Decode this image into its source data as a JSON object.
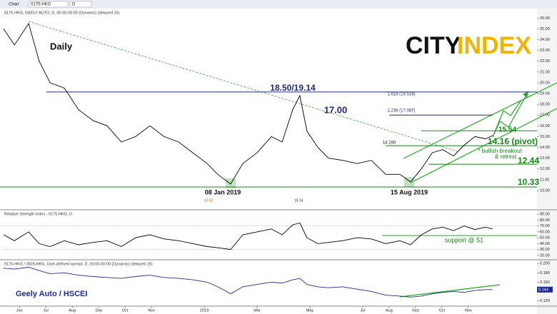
{
  "toolbar": {
    "tab": "Chart",
    "symbol": "0175-HKG",
    "interval": "D"
  },
  "logo": {
    "city": "CITY",
    "index": "INDEX"
  },
  "chart_data": [
    {
      "type": "line",
      "title": "0175-HKG, GEELY AUTO, D, 00:00-00:00 (Dynamic) (delayed 15)",
      "label": "Daily",
      "x": [
        -0.6,
        -0.19,
        0.35,
        0.75,
        1.16,
        1.7,
        2.24,
        2.78,
        3.32,
        3.86,
        4.4,
        4.94,
        5.48,
        6.03,
        6.57,
        7.11,
        7.51,
        8.0,
        8.46,
        9.0,
        9.54,
        9.95,
        10.35,
        10.62,
        10.89,
        11.3,
        11.7,
        12.24,
        12.79,
        13.33,
        13.87,
        14.41,
        14.81,
        15.22,
        15.63,
        16.03,
        16.44,
        16.84,
        17.25,
        17.65,
        17.92
      ],
      "series": [
        {
          "name": "GEELY AUTO",
          "color": "#000000",
          "values": [
            25.0,
            23.5,
            25.5,
            22.0,
            20.0,
            19.5,
            17.5,
            16.5,
            16.0,
            14.5,
            15.0,
            16.0,
            15.0,
            14.5,
            13.5,
            12.5,
            11.5,
            10.6,
            12.5,
            13.5,
            15.0,
            14.5,
            17.5,
            18.8,
            15.5,
            14.0,
            13.0,
            12.8,
            12.5,
            12.8,
            11.5,
            11.5,
            10.8,
            12.0,
            13.5,
            13.8,
            13.2,
            14.2,
            15.0,
            14.8,
            15.1
          ]
        }
      ],
      "xlim": [
        -0.6,
        19.6
      ],
      "ylim": [
        8.34,
        26.75
      ],
      "yticks": [
        {
          "value": 10,
          "label": "10.00"
        },
        {
          "value": 11,
          "label": "11.00"
        },
        {
          "value": 12,
          "label": "12.00"
        },
        {
          "value": 13,
          "label": "13.00"
        },
        {
          "value": 14,
          "label": "14.00"
        },
        {
          "value": 15,
          "label": "15.00"
        },
        {
          "value": 16,
          "label": "16.00"
        },
        {
          "value": 17,
          "label": "17.00"
        },
        {
          "value": 18,
          "label": "18.00"
        },
        {
          "value": 19,
          "label": "19.00"
        },
        {
          "value": 20,
          "label": "20.00"
        },
        {
          "value": 21,
          "label": "21.00"
        },
        {
          "value": 22,
          "label": "22.00"
        },
        {
          "value": 23,
          "label": "23.00"
        },
        {
          "value": 24,
          "label": "24.00"
        },
        {
          "value": 25,
          "label": "25.00"
        },
        {
          "value": 26,
          "label": "26.00"
        }
      ],
      "levels": [
        {
          "value": 19.14,
          "label": "18.50/19.14",
          "color": "#1f2a7a"
        },
        {
          "value": 17.0,
          "label": "17.00",
          "color": "#1f2a7a"
        },
        {
          "value": 15.54,
          "label": "15.54",
          "color": "#138a13"
        },
        {
          "value": 14.16,
          "label": "14.16 (pivot)",
          "color": "#138a13"
        },
        {
          "value": 12.44,
          "label": "12.44",
          "color": "#138a13"
        },
        {
          "value": 10.33,
          "label": "10.33",
          "color": "#138a13"
        }
      ],
      "notes": [
        "08 Jan 2019",
        "15 Aug 2019",
        "* bullish breakout",
        "& retrest",
        "1.618 (18.524)",
        "1.236 (17.087)",
        "14.160",
        "10.60",
        "19.14"
      ]
    },
    {
      "type": "line",
      "title": "Relative Strength Index - 0175-HKG, D",
      "x": [
        -0.6,
        -0.19,
        0.35,
        0.75,
        1.16,
        1.7,
        2.24,
        2.78,
        3.32,
        3.86,
        4.4,
        4.94,
        5.48,
        6.03,
        6.57,
        7.11,
        7.51,
        8.0,
        8.46,
        9.0,
        9.54,
        9.95,
        10.35,
        10.62,
        10.89,
        11.3,
        11.7,
        12.24,
        12.79,
        13.33,
        13.87,
        14.41,
        14.81,
        15.22,
        15.63,
        16.03,
        16.44,
        16.84,
        17.25,
        17.65,
        17.92
      ],
      "series": [
        {
          "name": "RSI",
          "color": "#000000",
          "values": [
            55,
            45,
            60,
            40,
            35,
            45,
            38,
            42,
            45,
            35,
            50,
            55,
            48,
            45,
            40,
            35,
            33,
            30,
            55,
            60,
            65,
            55,
            72,
            75,
            50,
            40,
            42,
            45,
            50,
            48,
            40,
            45,
            38,
            55,
            65,
            68,
            62,
            70,
            64,
            68,
            65
          ]
        }
      ],
      "xlim": [
        -0.6,
        19.6
      ],
      "ylim": [
        15,
        95
      ],
      "yticks": [
        {
          "value": 20,
          "label": "20.00"
        },
        {
          "value": 30,
          "label": "30.00"
        },
        {
          "value": 40,
          "label": "40.00"
        },
        {
          "value": 50,
          "label": "50.00"
        },
        {
          "value": 60,
          "label": "60.00"
        },
        {
          "value": 70,
          "label": "70.00"
        },
        {
          "value": 80,
          "label": "80.00"
        },
        {
          "value": 90,
          "label": "90.00"
        }
      ],
      "levels": [
        {
          "value": 51,
          "label": "support @ 51",
          "color": "#138a13"
        }
      ]
    },
    {
      "type": "line",
      "title": "0175-HKG / 2828-HKG, User-defined spread, D, 00:00-00:00 (Dynamic) (delayed 15)",
      "label": "Geely Auto / HSCEI",
      "x": [
        -0.6,
        -0.19,
        0.35,
        0.75,
        1.16,
        1.7,
        2.24,
        2.78,
        3.32,
        3.86,
        4.4,
        4.94,
        5.48,
        6.03,
        6.57,
        7.11,
        7.51,
        8.0,
        8.46,
        9.0,
        9.54,
        9.95,
        10.35,
        10.62,
        10.89,
        11.3,
        11.7,
        12.24,
        12.79,
        13.33,
        13.87,
        14.41,
        14.81,
        15.22,
        15.63,
        16.03,
        16.44,
        16.84,
        17.25,
        17.65,
        17.92
      ],
      "series": [
        {
          "name": "Geely Auto / HSCEI",
          "color": "#1f2a9a",
          "values": [
            0.19,
            0.188,
            0.192,
            0.185,
            0.178,
            0.18,
            0.175,
            0.172,
            0.17,
            0.168,
            0.172,
            0.175,
            0.17,
            0.168,
            0.165,
            0.16,
            0.15,
            0.135,
            0.15,
            0.155,
            0.16,
            0.158,
            0.165,
            0.168,
            0.155,
            0.15,
            0.148,
            0.15,
            0.145,
            0.14,
            0.132,
            0.13,
            0.128,
            0.13,
            0.135,
            0.138,
            0.14,
            0.138,
            0.142,
            0.144,
            0.144
          ]
        }
      ],
      "last_label": "0.144",
      "xlim": [
        -0.6,
        19.6
      ],
      "ylim": [
        0.11,
        0.205
      ],
      "yticks": [
        {
          "value": 0.12,
          "label": "0.120"
        },
        {
          "value": 0.14,
          "label": "0.140"
        },
        {
          "value": 0.16,
          "label": "0.160"
        },
        {
          "value": 0.18,
          "label": "0.180"
        },
        {
          "value": 0.2,
          "label": "0.200"
        }
      ],
      "xticks": [
        {
          "value": 0,
          "label": "Jun"
        },
        {
          "value": 1,
          "label": "Jul"
        },
        {
          "value": 2,
          "label": "Aug"
        },
        {
          "value": 3,
          "label": "Sep"
        },
        {
          "value": 4,
          "label": "Oct"
        },
        {
          "value": 5,
          "label": "Nov"
        },
        {
          "value": 7,
          "label": "2019"
        },
        {
          "value": 9,
          "label": "Mar"
        },
        {
          "value": 11,
          "label": "May"
        },
        {
          "value": 13,
          "label": "Jul"
        },
        {
          "value": 14,
          "label": "Aug"
        },
        {
          "value": 15,
          "label": "Sep"
        },
        {
          "value": 16,
          "label": "Oct"
        },
        {
          "value": 17,
          "label": "Nov"
        }
      ]
    }
  ]
}
